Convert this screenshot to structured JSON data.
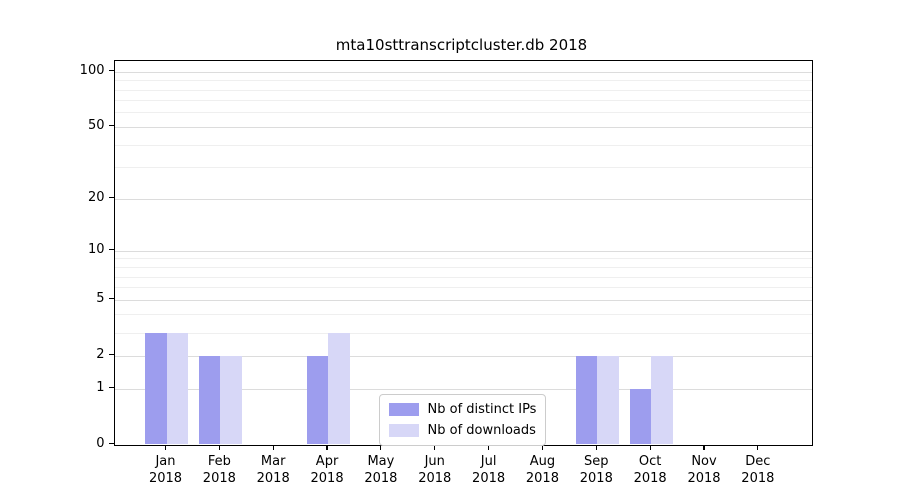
{
  "chart_data": {
    "type": "bar",
    "title": "mta10sttranscriptcluster.db 2018",
    "yscale": "log1p",
    "ylim": [
      0,
      115
    ],
    "grid": true,
    "y_major_ticks": [
      {
        "value": 0,
        "label": "0"
      },
      {
        "value": 1,
        "label": "1"
      },
      {
        "value": 2,
        "label": "2"
      },
      {
        "value": 5,
        "label": "5"
      },
      {
        "value": 10,
        "label": "10"
      },
      {
        "value": 20,
        "label": "20"
      },
      {
        "value": 50,
        "label": "50"
      },
      {
        "value": 100,
        "label": "100"
      }
    ],
    "y_minor_gridlines": [
      3,
      4,
      6,
      7,
      8,
      9,
      30,
      40,
      60,
      70,
      80,
      90
    ],
    "categories": [
      "Jan",
      "Feb",
      "Mar",
      "Apr",
      "May",
      "Jun",
      "Jul",
      "Aug",
      "Sep",
      "Oct",
      "Nov",
      "Dec"
    ],
    "year_label": "2018",
    "series": [
      {
        "name": "Nb of distinct IPs",
        "color": "#9d9dee",
        "values": [
          3,
          2,
          0,
          2,
          0,
          0,
          0,
          0,
          2,
          1,
          0,
          0
        ]
      },
      {
        "name": "Nb of downloads",
        "color": "#d7d7f7",
        "values": [
          3,
          2,
          0,
          3,
          0,
          0,
          0,
          0,
          2,
          2,
          0,
          0
        ]
      }
    ],
    "legend": {
      "position": "lower center"
    }
  },
  "colors": {
    "major_grid": "#dcdcdc",
    "minor_grid": "#efefef",
    "spine": "#000000",
    "text": "#000000",
    "background": "#ffffff"
  }
}
